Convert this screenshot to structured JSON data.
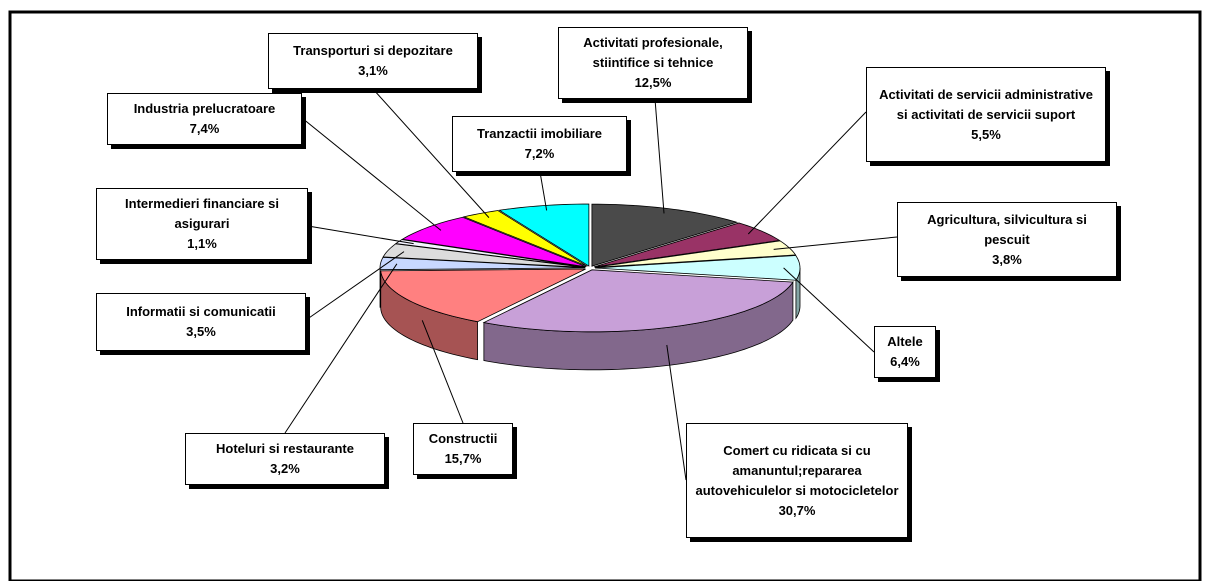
{
  "chart_data": {
    "type": "pie",
    "categories": [
      "Activitati profesionale, stiintifice si tehnice",
      "Activitati de servicii administrative si activitati de servicii suport",
      "Agricultura, silvicultura si pescuit",
      "Altele",
      "Comert cu ridicata si cu amanuntul;repararea autovehiculelor si motocicletelor",
      "Constructii",
      "Hoteluri si restaurante",
      "Informatii si comunicatii",
      "Intermedieri financiare si asigurari",
      "Industria prelucratoare",
      "Transporturi si depozitare",
      "Tranzactii imobiliare"
    ],
    "values": [
      12.5,
      5.5,
      3.8,
      6.4,
      30.7,
      15.7,
      3.2,
      3.5,
      1.1,
      7.4,
      3.1,
      7.2
    ],
    "value_labels": [
      "12,5%",
      "5,5%",
      "3,8%",
      "6,4%",
      "30,7%",
      "15,7%",
      "3,2%",
      "3,5%",
      "1,1%",
      "7,4%",
      "3,1%",
      "7,2%"
    ],
    "colors": [
      "#4a4a4a",
      "#993366",
      "#ffffcc",
      "#ccffff",
      "#c8a0d8",
      "#ff8080",
      "#c8d8ff",
      "#dcdcdc",
      "#f4f4ff",
      "#ff00ff",
      "#ffff00",
      "#00ffff"
    ]
  }
}
